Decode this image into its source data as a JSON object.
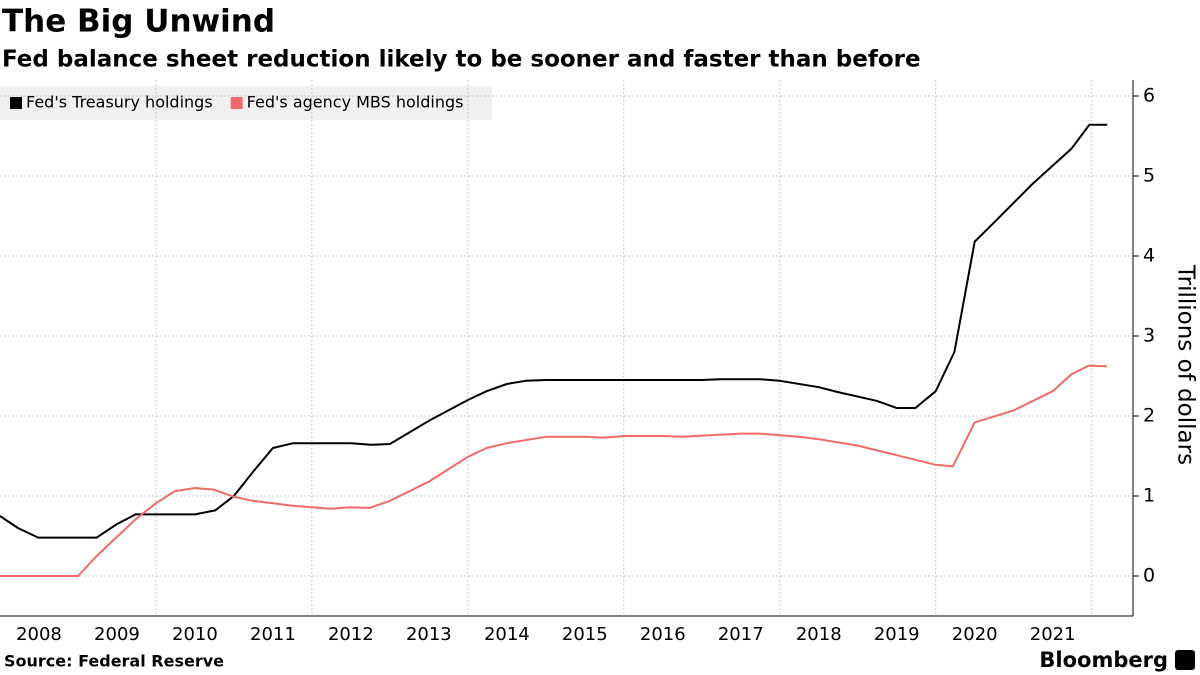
{
  "chart_data": {
    "type": "line",
    "title": "The Big Unwind",
    "subtitle": "Fed balance sheet reduction likely to be sooner and faster than before",
    "y_label": "Trillions of dollars",
    "source": "Source: Federal Reserve",
    "brand": "Bloomberg",
    "xlim": [
      2008,
      2022.53
    ],
    "xticks": [
      {
        "value": 2008.5,
        "label": "2008"
      },
      {
        "value": 2009.5,
        "label": "2009"
      },
      {
        "value": 2010.5,
        "label": "2010"
      },
      {
        "value": 2011.5,
        "label": "2011"
      },
      {
        "value": 2012.5,
        "label": "2012"
      },
      {
        "value": 2013.5,
        "label": "2013"
      },
      {
        "value": 2014.5,
        "label": "2014"
      },
      {
        "value": 2015.5,
        "label": "2015"
      },
      {
        "value": 2016.5,
        "label": "2016"
      },
      {
        "value": 2017.5,
        "label": "2017"
      },
      {
        "value": 2018.5,
        "label": "2018"
      },
      {
        "value": 2019.5,
        "label": "2019"
      },
      {
        "value": 2020.5,
        "label": "2020"
      },
      {
        "value": 2021.5,
        "label": "2021"
      }
    ],
    "xgrid": [
      2010,
      2012,
      2014,
      2016,
      2018,
      2020,
      2022
    ],
    "ylim": [
      -0.5,
      6.2
    ],
    "yticks": [
      0,
      1,
      2,
      3,
      4,
      5,
      6
    ],
    "grid": true,
    "legend": "top-left",
    "series": [
      {
        "name": "Fed's Treasury holdings",
        "color": "#000000",
        "x": [
          2008.0,
          2008.23,
          2008.49,
          2009.24,
          2009.5,
          2009.74,
          2010.5,
          2010.76,
          2011.0,
          2011.26,
          2011.5,
          2011.76,
          2012.5,
          2012.76,
          2013.0,
          2013.5,
          2014.0,
          2014.24,
          2014.5,
          2014.74,
          2015.0,
          2017.0,
          2017.24,
          2017.74,
          2018.0,
          2018.5,
          2018.74,
          2019.24,
          2019.5,
          2019.74,
          2020.0,
          2020.24,
          2020.5,
          2020.74,
          2021.24,
          2021.74,
          2021.97,
          2022.2
        ],
        "values": [
          0.75,
          0.6,
          0.48,
          0.48,
          0.65,
          0.77,
          0.77,
          0.82,
          1.0,
          1.32,
          1.6,
          1.66,
          1.66,
          1.64,
          1.65,
          1.94,
          2.2,
          2.31,
          2.4,
          2.44,
          2.45,
          2.45,
          2.46,
          2.46,
          2.44,
          2.36,
          2.3,
          2.19,
          2.1,
          2.1,
          2.31,
          2.8,
          4.18,
          4.41,
          4.9,
          5.34,
          5.64,
          5.64
        ]
      },
      {
        "name": "Fed's agency MBS holdings",
        "color": "#f06b67",
        "x": [
          2008.0,
          2009.0,
          2009.24,
          2009.5,
          2009.74,
          2010.0,
          2010.24,
          2010.5,
          2010.74,
          2011.0,
          2011.24,
          2011.5,
          2011.74,
          2012.24,
          2012.5,
          2012.74,
          2013.0,
          2013.5,
          2014.0,
          2014.24,
          2014.5,
          2015.0,
          2015.5,
          2015.74,
          2016.0,
          2016.5,
          2016.74,
          2017.5,
          2017.74,
          2018.24,
          2018.5,
          2019.0,
          2019.5,
          2020.0,
          2020.22,
          2020.5,
          2021.0,
          2021.5,
          2021.74,
          2021.96,
          2022.2
        ],
        "values": [
          0,
          0,
          0.25,
          0.49,
          0.71,
          0.91,
          1.06,
          1.1,
          1.08,
          0.99,
          0.94,
          0.91,
          0.88,
          0.84,
          0.86,
          0.85,
          0.94,
          1.18,
          1.49,
          1.6,
          1.66,
          1.74,
          1.74,
          1.73,
          1.75,
          1.75,
          1.74,
          1.78,
          1.78,
          1.74,
          1.71,
          1.63,
          1.51,
          1.39,
          1.37,
          1.92,
          2.07,
          2.31,
          2.52,
          2.63,
          2.62
        ]
      }
    ]
  }
}
